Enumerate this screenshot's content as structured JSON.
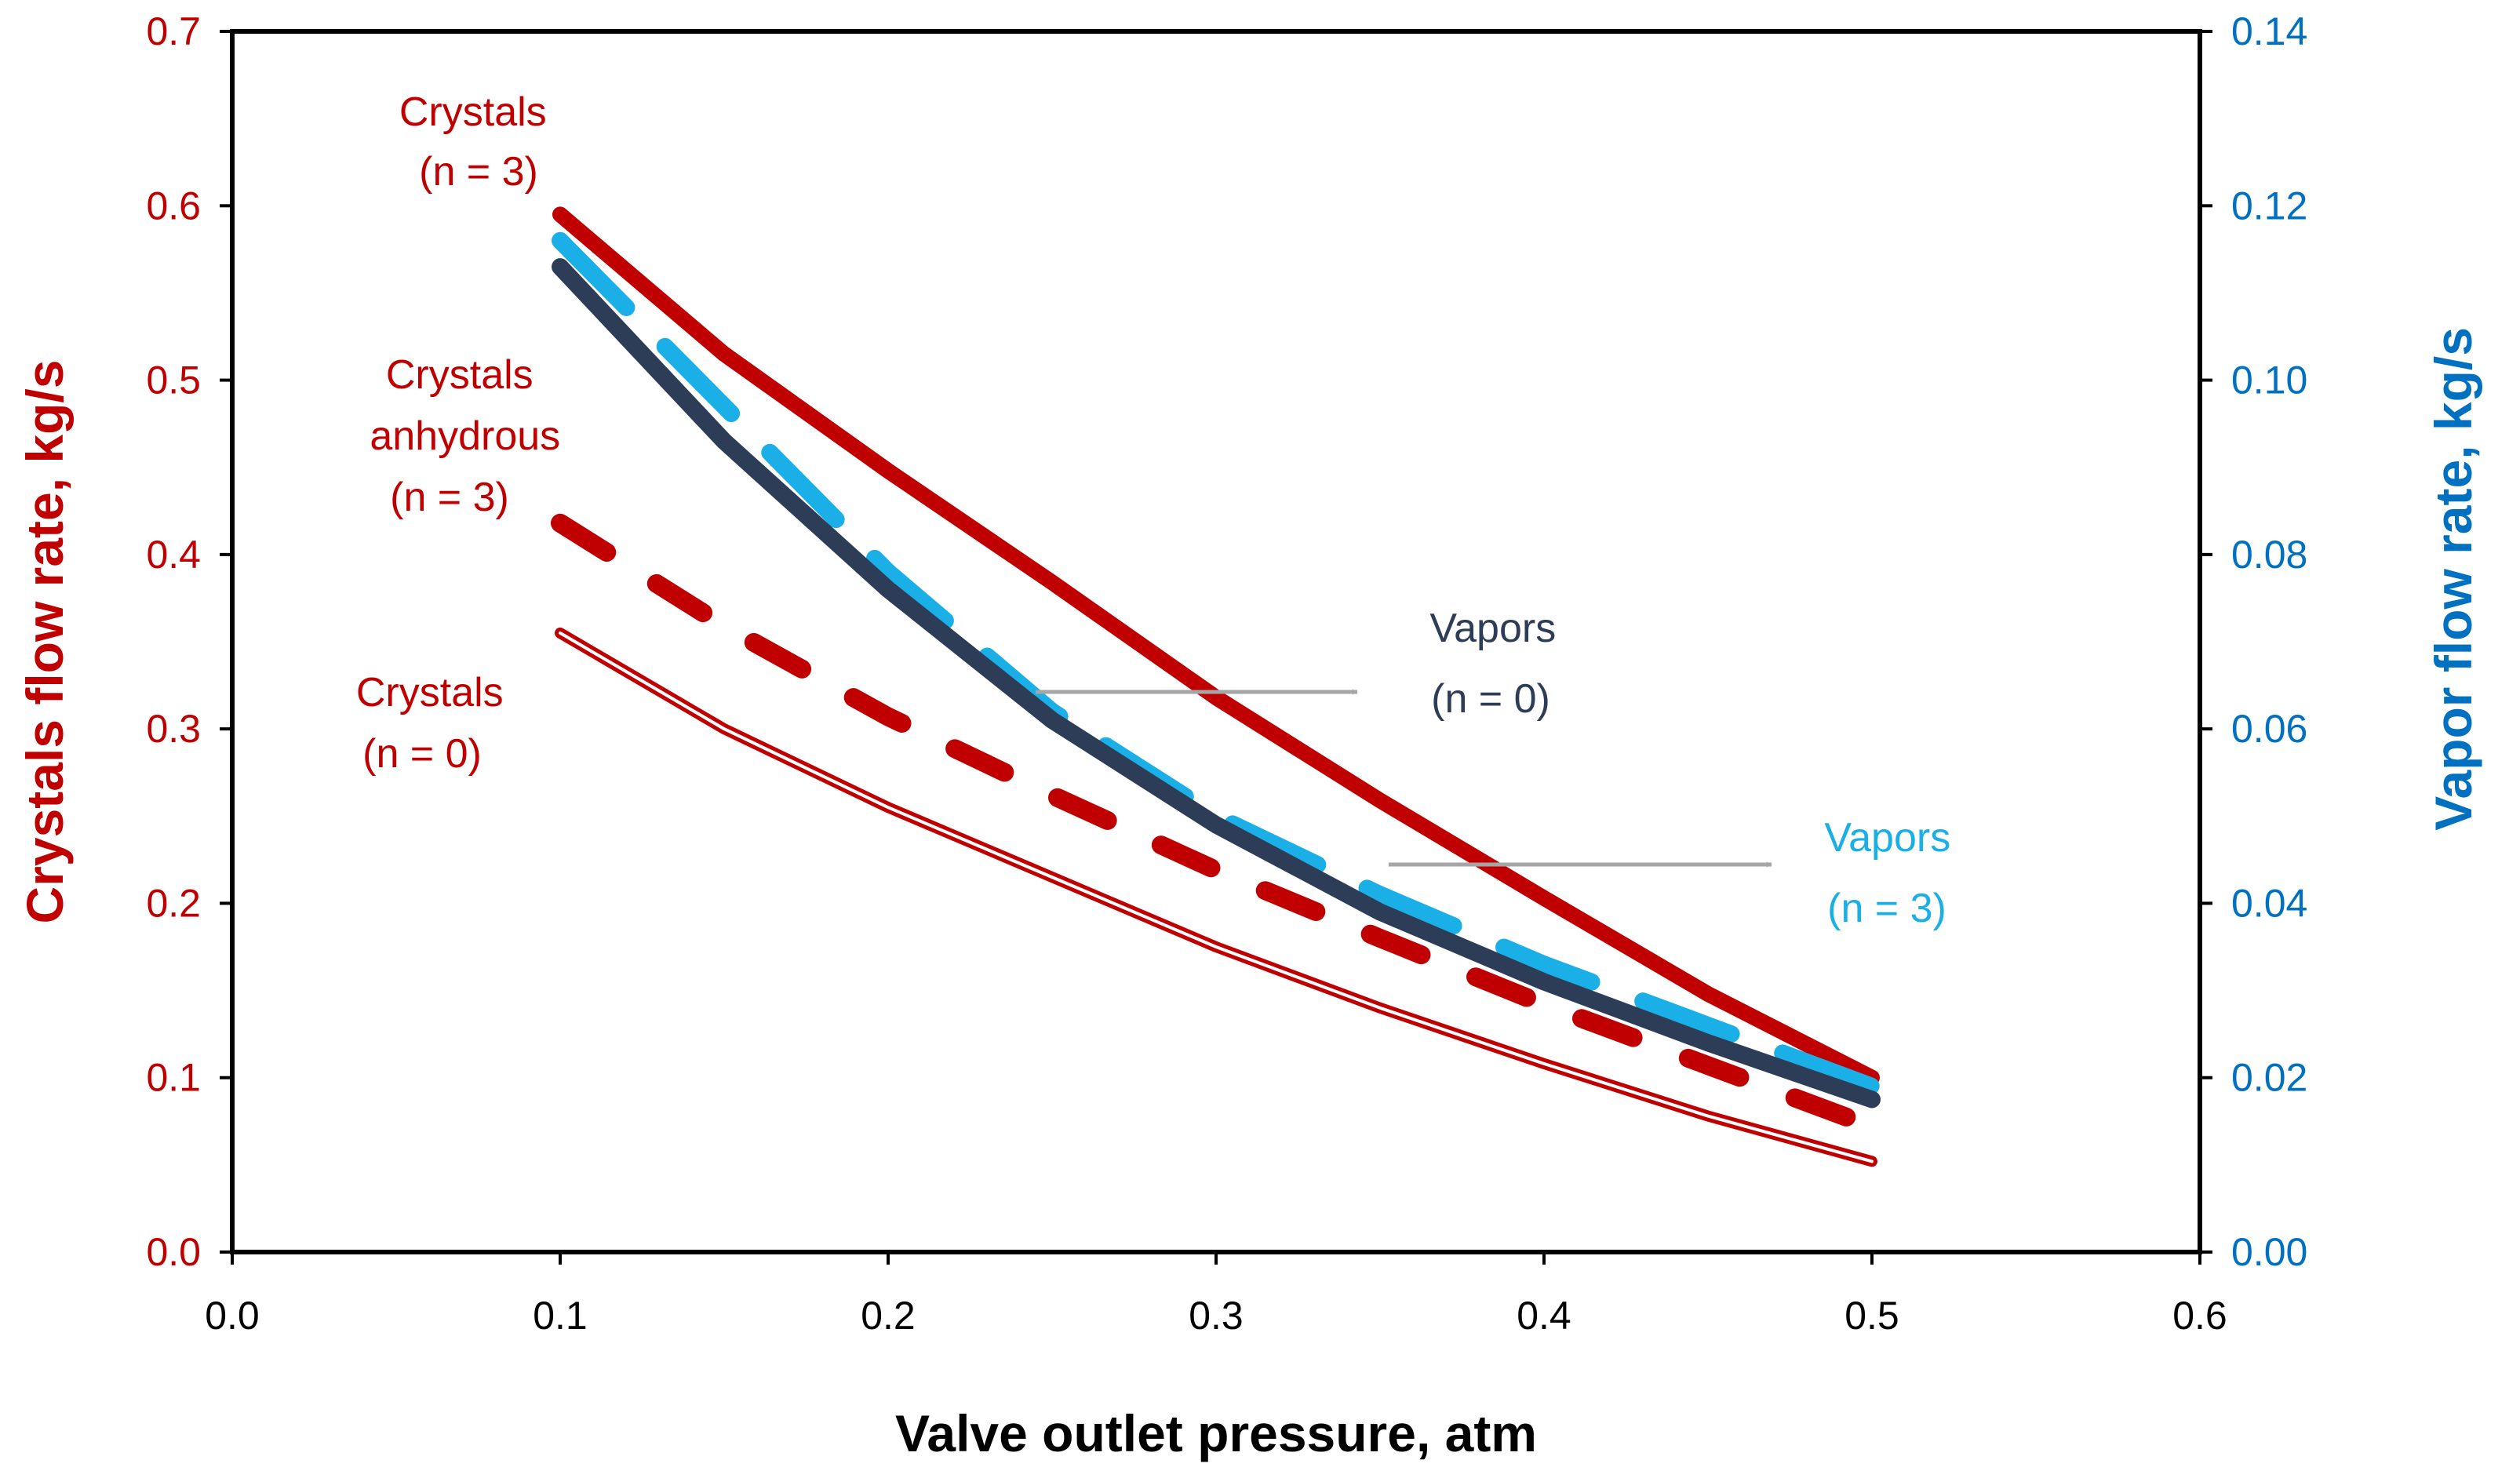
{
  "chart_data": {
    "type": "line",
    "title": "",
    "xlabel": "Valve outlet pressure, atm",
    "ylabel": "Crystals flow rate, kg/s",
    "y2label": "Vapor flow rate, kg/s",
    "xlim": [
      0,
      0.6
    ],
    "ylim": [
      0,
      0.7
    ],
    "y2lim": [
      0,
      0.14
    ],
    "grid": false,
    "x_ticks": [
      "0.0",
      "0.1",
      "0.2",
      "0.3",
      "0.4",
      "0.5",
      "0.6"
    ],
    "y_ticks": [
      "0.0",
      "0.1",
      "0.2",
      "0.3",
      "0.4",
      "0.5",
      "0.6",
      "0.7"
    ],
    "y2_ticks": [
      "0.00",
      "0.02",
      "0.04",
      "0.06",
      "0.08",
      "0.10",
      "0.12",
      "0.14"
    ],
    "colors": {
      "crystals": "#c00000",
      "vapor_axis": "#0070c0",
      "vapors_n3": "#1aafe6",
      "vapors_n0": "#2e3d57",
      "arrow": "#a6a6a6"
    },
    "series": [
      {
        "name": "Crystals (n = 3)",
        "axis": "left",
        "style": "solid",
        "x": [
          0.1,
          0.15,
          0.2,
          0.25,
          0.3,
          0.35,
          0.4,
          0.45,
          0.5
        ],
        "values": [
          0.595,
          0.515,
          0.448,
          0.384,
          0.318,
          0.259,
          0.203,
          0.148,
          0.1
        ]
      },
      {
        "name": "Crystals anhydrous (n = 3)",
        "axis": "left",
        "style": "dashed",
        "x": [
          0.1,
          0.15,
          0.2,
          0.25,
          0.3,
          0.35,
          0.4,
          0.45,
          0.5
        ],
        "values": [
          0.418,
          0.359,
          0.307,
          0.262,
          0.219,
          0.18,
          0.142,
          0.107,
          0.072
        ]
      },
      {
        "name": "Crystals (n = 0)",
        "axis": "left",
        "style": "double",
        "x": [
          0.1,
          0.15,
          0.2,
          0.25,
          0.3,
          0.35,
          0.4,
          0.45,
          0.5
        ],
        "values": [
          0.355,
          0.3,
          0.255,
          0.215,
          0.175,
          0.14,
          0.108,
          0.078,
          0.052
        ]
      },
      {
        "name": "Vapors (n = 3)",
        "axis": "right",
        "style": "dashed",
        "x": [
          0.1,
          0.15,
          0.2,
          0.25,
          0.3,
          0.35,
          0.4,
          0.45,
          0.5
        ],
        "values": [
          0.116,
          0.097,
          0.078,
          0.062,
          0.05,
          0.041,
          0.033,
          0.026,
          0.019
        ]
      },
      {
        "name": "Vapors (n = 0)",
        "axis": "right",
        "style": "solid",
        "x": [
          0.1,
          0.15,
          0.2,
          0.25,
          0.3,
          0.35,
          0.4,
          0.45,
          0.5
        ],
        "values": [
          0.113,
          0.093,
          0.076,
          0.061,
          0.049,
          0.039,
          0.031,
          0.024,
          0.0175
        ]
      }
    ],
    "annotations": [
      {
        "name": "crystals-n3",
        "color": "#c00000",
        "lines": [
          "Crystals",
          "(n = 3)"
        ]
      },
      {
        "name": "crystals-anhydrous-n3",
        "color": "#c00000",
        "lines": [
          "Crystals",
          "anhydrous",
          "(n = 3)"
        ]
      },
      {
        "name": "crystals-n0",
        "color": "#c00000",
        "lines": [
          "Crystals",
          "(n = 0)"
        ]
      },
      {
        "name": "vapors-n0",
        "color": "#2e3d57",
        "lines": [
          "Vapors",
          "(n = 0)"
        ]
      },
      {
        "name": "vapors-n3",
        "color": "#1aafe6",
        "lines": [
          "Vapors",
          "(n = 3)"
        ]
      }
    ]
  }
}
